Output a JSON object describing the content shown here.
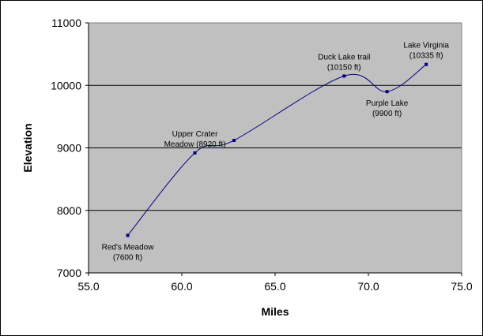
{
  "chart_data": {
    "type": "line",
    "title": "",
    "xlabel": "Miles",
    "ylabel": "Elevation",
    "xlim": [
      55,
      75
    ],
    "ylim": [
      7000,
      11000
    ],
    "x_ticks": [
      "55.0",
      "60.0",
      "65.0",
      "70.0",
      "75.0"
    ],
    "y_ticks": [
      "7000",
      "8000",
      "9000",
      "10000",
      "11000"
    ],
    "grid": "horizontal",
    "smoothed": true,
    "colors": {
      "plot_background": "#c0c0c0",
      "line": "#000080",
      "marker": "#000080",
      "gridline": "#000000"
    },
    "series": [
      {
        "points": [
          {
            "x": 57.1,
            "y": 7600
          },
          {
            "x": 60.7,
            "y": 8920
          },
          {
            "x": 62.8,
            "y": 9120
          },
          {
            "x": 68.7,
            "y": 10150
          },
          {
            "x": 71.0,
            "y": 9900
          },
          {
            "x": 73.1,
            "y": 10335
          }
        ]
      }
    ],
    "annotations": [
      {
        "point": 0,
        "lines": [
          "Red's Meadow",
          "(7600 ft)"
        ],
        "position": "below"
      },
      {
        "point": 1,
        "lines": [
          "Upper Crater",
          "Meadow (8920 ft)"
        ],
        "position": "above"
      },
      {
        "point": 3,
        "lines": [
          "Duck Lake trail",
          "(10150 ft)"
        ],
        "position": "above"
      },
      {
        "point": 4,
        "lines": [
          "Purple Lake",
          "(9900 ft)"
        ],
        "position": "below"
      },
      {
        "point": 5,
        "lines": [
          "Lake Virginia",
          "(10335 ft)"
        ],
        "position": "above"
      }
    ]
  }
}
